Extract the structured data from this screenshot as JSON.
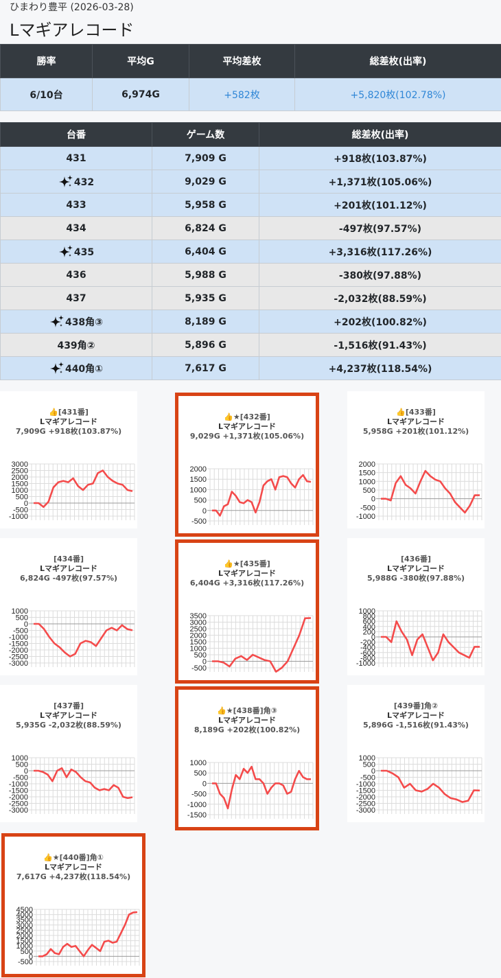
{
  "header": {
    "store": "ひまわり豊平 (2026-03-28)",
    "title": "Lマギアレコード"
  },
  "summary": {
    "headers": [
      "勝率",
      "平均G",
      "平均差枚",
      "総差枚(出率)"
    ],
    "values": [
      "6/10台",
      "6,974G",
      "+582枚",
      "+5,820枚(102.78%)"
    ]
  },
  "machines": {
    "headers": [
      "台番",
      "ゲーム数",
      "総差枚(出率)"
    ],
    "rows": [
      {
        "no": "431",
        "games": "7,909 G",
        "diff": "+918枚(103.87%)",
        "star": false,
        "win": true
      },
      {
        "no": "432",
        "games": "9,029 G",
        "diff": "+1,371枚(105.06%)",
        "star": true,
        "win": true
      },
      {
        "no": "433",
        "games": "5,958 G",
        "diff": "+201枚(101.12%)",
        "star": false,
        "win": true
      },
      {
        "no": "434",
        "games": "6,824 G",
        "diff": "-497枚(97.57%)",
        "star": false,
        "win": false
      },
      {
        "no": "435",
        "games": "6,404 G",
        "diff": "+3,316枚(117.26%)",
        "star": true,
        "win": true
      },
      {
        "no": "436",
        "games": "5,988 G",
        "diff": "-380枚(97.88%)",
        "star": false,
        "win": false
      },
      {
        "no": "437",
        "games": "5,935 G",
        "diff": "-2,032枚(88.59%)",
        "star": false,
        "win": false
      },
      {
        "no": "438角③",
        "games": "8,189 G",
        "diff": "+202枚(100.82%)",
        "star": true,
        "win": true
      },
      {
        "no": "439角②",
        "games": "5,896 G",
        "diff": "-1,516枚(91.43%)",
        "star": false,
        "win": false
      },
      {
        "no": "440角①",
        "games": "7,617 G",
        "diff": "+4,237枚(118.54%)",
        "star": true,
        "win": true
      }
    ]
  },
  "colors": {
    "header_bg": "#343a40",
    "win_row": "#cfe2f6",
    "lose_row": "#e8e8e8",
    "plus_text": "#2f86d6",
    "line": "#f44b4b",
    "highlight": "#d84315"
  },
  "icons": {
    "sparkle": "sparkle-icon",
    "thumb": "thumbs-up-icon"
  },
  "chart_data": [
    {
      "type": "line",
      "head": "[431番]",
      "prefix": "👍",
      "name": "Lマギアレコード",
      "info": "7,909G +918枚(103.87%)",
      "highlight": false,
      "yticks": [
        3000,
        2500,
        2000,
        1500,
        1000,
        500,
        0,
        -500,
        -1000
      ],
      "ylim": [
        -1000,
        3000
      ],
      "values": [
        0,
        0,
        -300,
        100,
        1200,
        1600,
        1700,
        1600,
        1900,
        1300,
        1000,
        1400,
        1500,
        2300,
        2500,
        2000,
        1700,
        1500,
        1400,
        1000,
        918
      ]
    },
    {
      "type": "line",
      "head": "[432番]",
      "prefix": "👍★",
      "name": "Lマギアレコード",
      "info": "9,029G +1,371枚(105.06%)",
      "highlight": true,
      "yticks": [
        2000,
        1500,
        1000,
        500,
        0,
        -500
      ],
      "ylim": [
        -500,
        2000
      ],
      "values": [
        0,
        0,
        -250,
        200,
        300,
        900,
        700,
        400,
        350,
        500,
        400,
        -100,
        400,
        1200,
        1400,
        1500,
        1000,
        1600,
        1650,
        1600,
        1300,
        1100,
        1500,
        1700,
        1400,
        1371
      ]
    },
    {
      "type": "line",
      "head": "[433番]",
      "prefix": "👍",
      "name": "Lマギアレコード",
      "info": "5,958G +201枚(101.12%)",
      "highlight": false,
      "yticks": [
        2000,
        1500,
        1000,
        500,
        0,
        -500,
        -1000
      ],
      "ylim": [
        -1000,
        2000
      ],
      "values": [
        0,
        0,
        -100,
        900,
        1300,
        800,
        600,
        300,
        1000,
        1600,
        1300,
        1100,
        1000,
        600,
        300,
        -200,
        -500,
        -800,
        -400,
        200,
        201
      ]
    },
    {
      "type": "line",
      "head": "[434番]",
      "prefix": "",
      "name": "Lマギアレコード",
      "info": "6,824G -497枚(97.57%)",
      "highlight": false,
      "yticks": [
        1000,
        500,
        0,
        -500,
        -1000,
        -1500,
        -2000,
        -2500,
        -3000
      ],
      "ylim": [
        -3000,
        1000
      ],
      "values": [
        0,
        0,
        -400,
        -1000,
        -1500,
        -1800,
        -2200,
        -2500,
        -2300,
        -1500,
        -1300,
        -1400,
        -1700,
        -1100,
        -500,
        -300,
        -500,
        -100,
        -400,
        -497
      ]
    },
    {
      "type": "line",
      "head": "[435番]",
      "prefix": "👍★",
      "name": "Lマギアレコード",
      "info": "6,404G +3,316枚(117.26%)",
      "highlight": true,
      "yticks": [
        3500,
        3000,
        2500,
        2000,
        1500,
        1000,
        500,
        0,
        -500
      ],
      "ylim": [
        -500,
        3500
      ],
      "values": [
        0,
        0,
        -100,
        -400,
        200,
        400,
        100,
        500,
        300,
        100,
        0,
        -800,
        -500,
        0,
        1000,
        2000,
        3300,
        3316
      ]
    },
    {
      "type": "line",
      "head": "[436番]",
      "prefix": "",
      "name": "Lマギアレコード",
      "info": "5,988G -380枚(97.88%)",
      "highlight": false,
      "yticks": [
        1000,
        800,
        600,
        400,
        200,
        0,
        -200,
        -400,
        -600,
        -800,
        -1000
      ],
      "ylim": [
        -1000,
        1000
      ],
      "values": [
        0,
        0,
        -200,
        600,
        200,
        -100,
        -700,
        -100,
        100,
        -400,
        -900,
        -600,
        100,
        -200,
        -400,
        -600,
        -700,
        -800,
        -380,
        -380
      ]
    },
    {
      "type": "line",
      "head": "[437番]",
      "prefix": "",
      "name": "Lマギアレコード",
      "info": "5,935G -2,032枚(88.59%)",
      "highlight": false,
      "yticks": [
        1000,
        500,
        0,
        -500,
        -1000,
        -1500,
        -2000,
        -2500,
        -3000
      ],
      "ylim": [
        -3000,
        1000
      ],
      "values": [
        0,
        0,
        -100,
        -300,
        -800,
        0,
        200,
        -500,
        100,
        -100,
        -500,
        -800,
        -900,
        -1300,
        -1500,
        -1400,
        -1500,
        -1100,
        -1300,
        -2000,
        -2100,
        -2032
      ]
    },
    {
      "type": "line",
      "head": "[438番]角③",
      "prefix": "👍★",
      "name": "Lマギアレコード",
      "info": "8,189G +202枚(100.82%)",
      "highlight": true,
      "yticks": [
        1000,
        500,
        0,
        -500,
        -1000,
        -1500
      ],
      "ylim": [
        -1500,
        1000
      ],
      "values": [
        0,
        0,
        -500,
        -700,
        -1200,
        -300,
        400,
        200,
        700,
        500,
        800,
        200,
        200,
        0,
        -500,
        -200,
        0,
        0,
        -100,
        -500,
        -400,
        200,
        600,
        300,
        200,
        202
      ]
    },
    {
      "type": "line",
      "head": "[439番]角②",
      "prefix": "",
      "name": "Lマギアレコード",
      "info": "5,896G -1,516枚(91.43%)",
      "highlight": false,
      "yticks": [
        1000,
        500,
        0,
        -500,
        -1000,
        -1500,
        -2000,
        -2500,
        -3000
      ],
      "ylim": [
        -3000,
        1000
      ],
      "values": [
        0,
        0,
        -200,
        -500,
        -1300,
        -1000,
        -1500,
        -1600,
        -1400,
        -1000,
        -1300,
        -1800,
        -2100,
        -2200,
        -2400,
        -2300,
        -1500,
        -1516
      ]
    },
    {
      "type": "line",
      "head": "[440番]角①",
      "prefix": "👍★",
      "name": "Lマギアレコード",
      "info": "7,617G +4,237枚(118.54%)",
      "highlight": true,
      "yticks": [
        4500,
        4000,
        3500,
        3000,
        2500,
        2000,
        1500,
        1000,
        500,
        0,
        -500
      ],
      "ylim": [
        -500,
        4500
      ],
      "values": [
        0,
        0,
        200,
        700,
        300,
        200,
        900,
        1200,
        900,
        1000,
        500,
        0,
        600,
        1100,
        800,
        500,
        1400,
        1500,
        1300,
        1400,
        2200,
        3000,
        4000,
        4200,
        4237
      ]
    }
  ]
}
